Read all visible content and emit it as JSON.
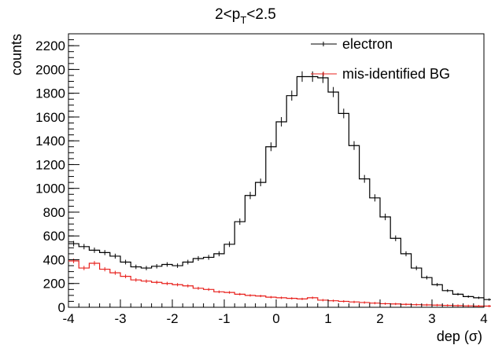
{
  "chart_data": {
    "type": "histogram",
    "title": {
      "main": "2<p",
      "sub": "T",
      "rest": "<2.5"
    },
    "xlabel": "dep (σ)",
    "ylabel": "counts",
    "xlim": [
      -4,
      4
    ],
    "ylim": [
      0,
      2300
    ],
    "xticks": [
      -4,
      -3,
      -2,
      -1,
      0,
      1,
      2,
      3,
      4
    ],
    "yticks": [
      0,
      200,
      400,
      600,
      800,
      1000,
      1200,
      1400,
      1600,
      1800,
      2000,
      2200
    ],
    "bin_width": 0.2,
    "bin_edges_start": -4.0,
    "grid": false,
    "legend_position": "top-right",
    "series": [
      {
        "name": "electron",
        "color": "#000000",
        "values": [
          535,
          510,
          480,
          460,
          430,
          380,
          340,
          330,
          345,
          360,
          350,
          380,
          410,
          420,
          450,
          530,
          720,
          940,
          1050,
          1350,
          1560,
          1780,
          1940,
          1940,
          1930,
          1810,
          1630,
          1360,
          1080,
          920,
          760,
          580,
          450,
          330,
          250,
          190,
          140,
          110,
          90,
          80,
          65,
          60,
          55,
          45,
          40,
          30,
          28,
          25,
          20,
          18
        ]
      },
      {
        "name": "mis-identified BG",
        "color": "#e8201c",
        "values": [
          390,
          330,
          370,
          320,
          290,
          260,
          230,
          220,
          210,
          200,
          190,
          180,
          160,
          150,
          130,
          125,
          110,
          100,
          95,
          85,
          80,
          75,
          70,
          80,
          60,
          55,
          50,
          45,
          40,
          35,
          30,
          28,
          25,
          22,
          20,
          18,
          16,
          14,
          12,
          10,
          10,
          9,
          8,
          7,
          6,
          5,
          5,
          4,
          3,
          3
        ]
      }
    ]
  }
}
